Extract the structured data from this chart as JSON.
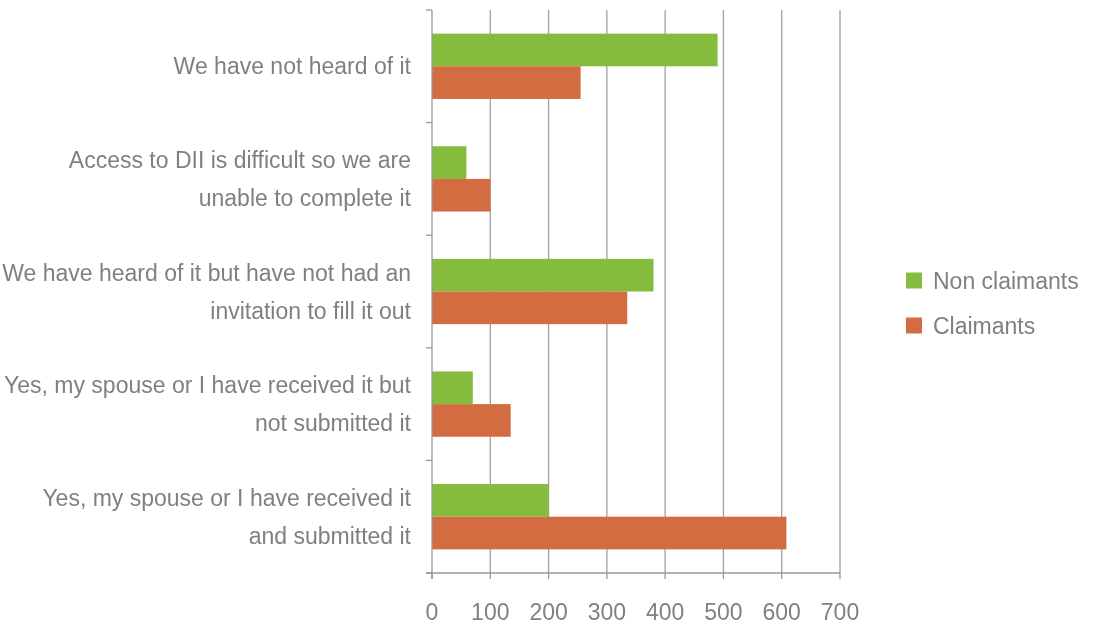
{
  "chart_data": {
    "type": "bar",
    "orientation": "horizontal",
    "categories": [
      "We have not heard of it",
      "Access to DII is difficult so we are unable to complete it",
      "We have heard of it but have not had an invitation to fill it out",
      "Yes, my spouse or I have received it but not submitted it",
      "Yes, my spouse or I have received it and submitted it"
    ],
    "series": [
      {
        "name": "Non claimants",
        "color": "#86bc3e",
        "values": [
          490,
          59,
          380,
          70,
          200
        ]
      },
      {
        "name": "Claimants",
        "color": "#d46c42",
        "values": [
          255,
          100,
          335,
          135,
          608
        ]
      }
    ],
    "xlim": [
      0,
      700
    ],
    "xticks": [
      0,
      100,
      200,
      300,
      400,
      500,
      600,
      700
    ],
    "grid": "x",
    "legend": "right"
  }
}
